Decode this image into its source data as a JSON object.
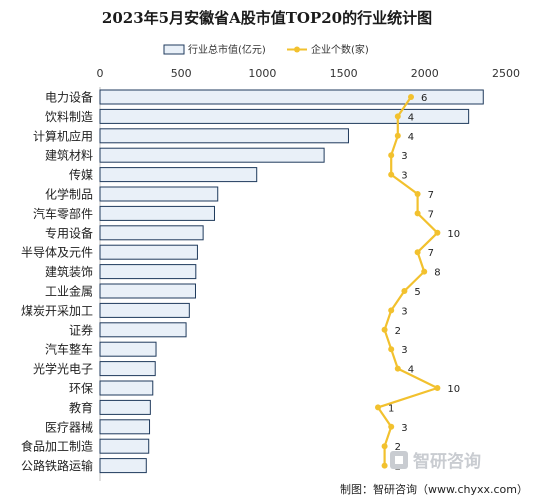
{
  "chart_data": {
    "type": "bar",
    "title": "2023年5月安徽省A股市值TOP20的行业统计图",
    "orientation": "horizontal",
    "categories": [
      "电力设备",
      "饮料制造",
      "计算机应用",
      "建筑材料",
      "传媒",
      "化学制品",
      "汽车零部件",
      "专用设备",
      "半导体及元件",
      "建筑装饰",
      "工业金属",
      "煤炭开采加工",
      "证券",
      "汽车整车",
      "光学光电子",
      "环保",
      "教育",
      "医疗器械",
      "食品加工制造",
      "公路铁路运输"
    ],
    "xlim": [
      0,
      2500
    ],
    "xticks": [
      "0",
      "500",
      "1000",
      "1500",
      "2000",
      "2500"
    ],
    "grid": false,
    "legend_position": "top",
    "series": [
      {
        "name": "行业总市值(亿元)",
        "type": "bar",
        "color": "#e9f0f8",
        "border_color": "#1f3a5c",
        "values": [
          2360,
          2270,
          1530,
          1380,
          965,
          725,
          705,
          635,
          600,
          590,
          588,
          550,
          530,
          345,
          340,
          325,
          310,
          305,
          300,
          285
        ]
      },
      {
        "name": "企业个数(家)",
        "type": "line",
        "color": "#f2c12e",
        "secondary_range": [
          0,
          10
        ],
        "values": [
          6,
          4,
          4,
          3,
          3,
          7,
          7,
          10,
          7,
          8,
          5,
          3,
          2,
          3,
          4,
          10,
          1,
          3,
          2,
          2
        ]
      }
    ]
  },
  "watermark": {
    "logo_text": "智研咨询",
    "logo_icon": "zhiyan-logo-icon"
  },
  "source": {
    "text": "制图：智研咨询（www.chyxx.com）"
  }
}
